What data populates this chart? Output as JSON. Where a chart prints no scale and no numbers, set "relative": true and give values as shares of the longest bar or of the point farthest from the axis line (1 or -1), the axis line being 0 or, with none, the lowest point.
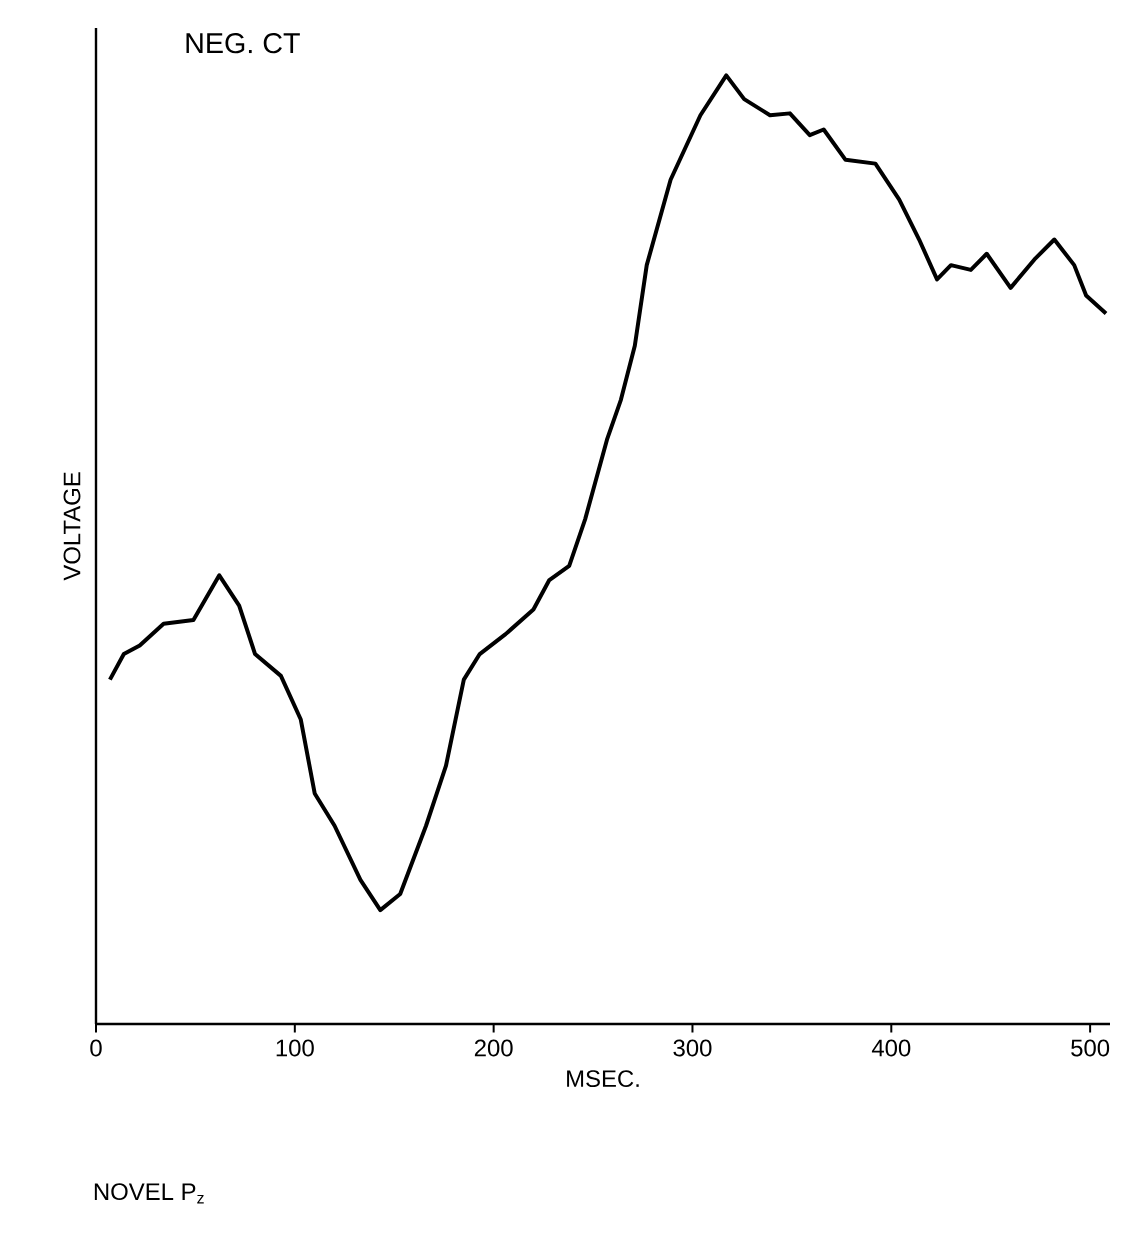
{
  "chart_data": {
    "type": "line",
    "title": "NEG. CT",
    "xlabel": "MSEC.",
    "ylabel": "VOLTAGE",
    "annotations": [
      "NOVEL  P$_{z}$"
    ],
    "relative": true,
    "xlim": [
      0,
      510
    ],
    "xticks": [
      0,
      100,
      200,
      300,
      400,
      500
    ],
    "line_style": "solid",
    "series": [
      {
        "color": "#000000",
        "x": [
          7,
          14,
          22,
          34,
          49,
          62,
          72,
          80,
          93,
          103,
          110,
          120,
          133,
          143,
          153,
          166,
          176,
          185,
          193,
          206,
          220,
          228,
          238,
          246,
          257,
          264,
          271,
          277,
          289,
          304,
          317,
          326,
          339,
          349,
          359,
          366,
          377,
          392,
          404,
          414,
          423,
          430,
          440,
          448,
          460,
          472,
          482,
          492,
          498,
          508
        ],
        "values": [
          0.363,
          0.39,
          0.399,
          0.422,
          0.426,
          0.473,
          0.441,
          0.39,
          0.367,
          0.321,
          0.243,
          0.209,
          0.152,
          0.12,
          0.137,
          0.209,
          0.272,
          0.363,
          0.39,
          0.411,
          0.437,
          0.468,
          0.483,
          0.532,
          0.616,
          0.658,
          0.715,
          0.8,
          0.89,
          0.958,
          1.0,
          0.975,
          0.958,
          0.96,
          0.937,
          0.943,
          0.911,
          0.907,
          0.869,
          0.827,
          0.785,
          0.8,
          0.795,
          0.812,
          0.776,
          0.806,
          0.827,
          0.8,
          0.768,
          0.749
        ]
      }
    ]
  }
}
